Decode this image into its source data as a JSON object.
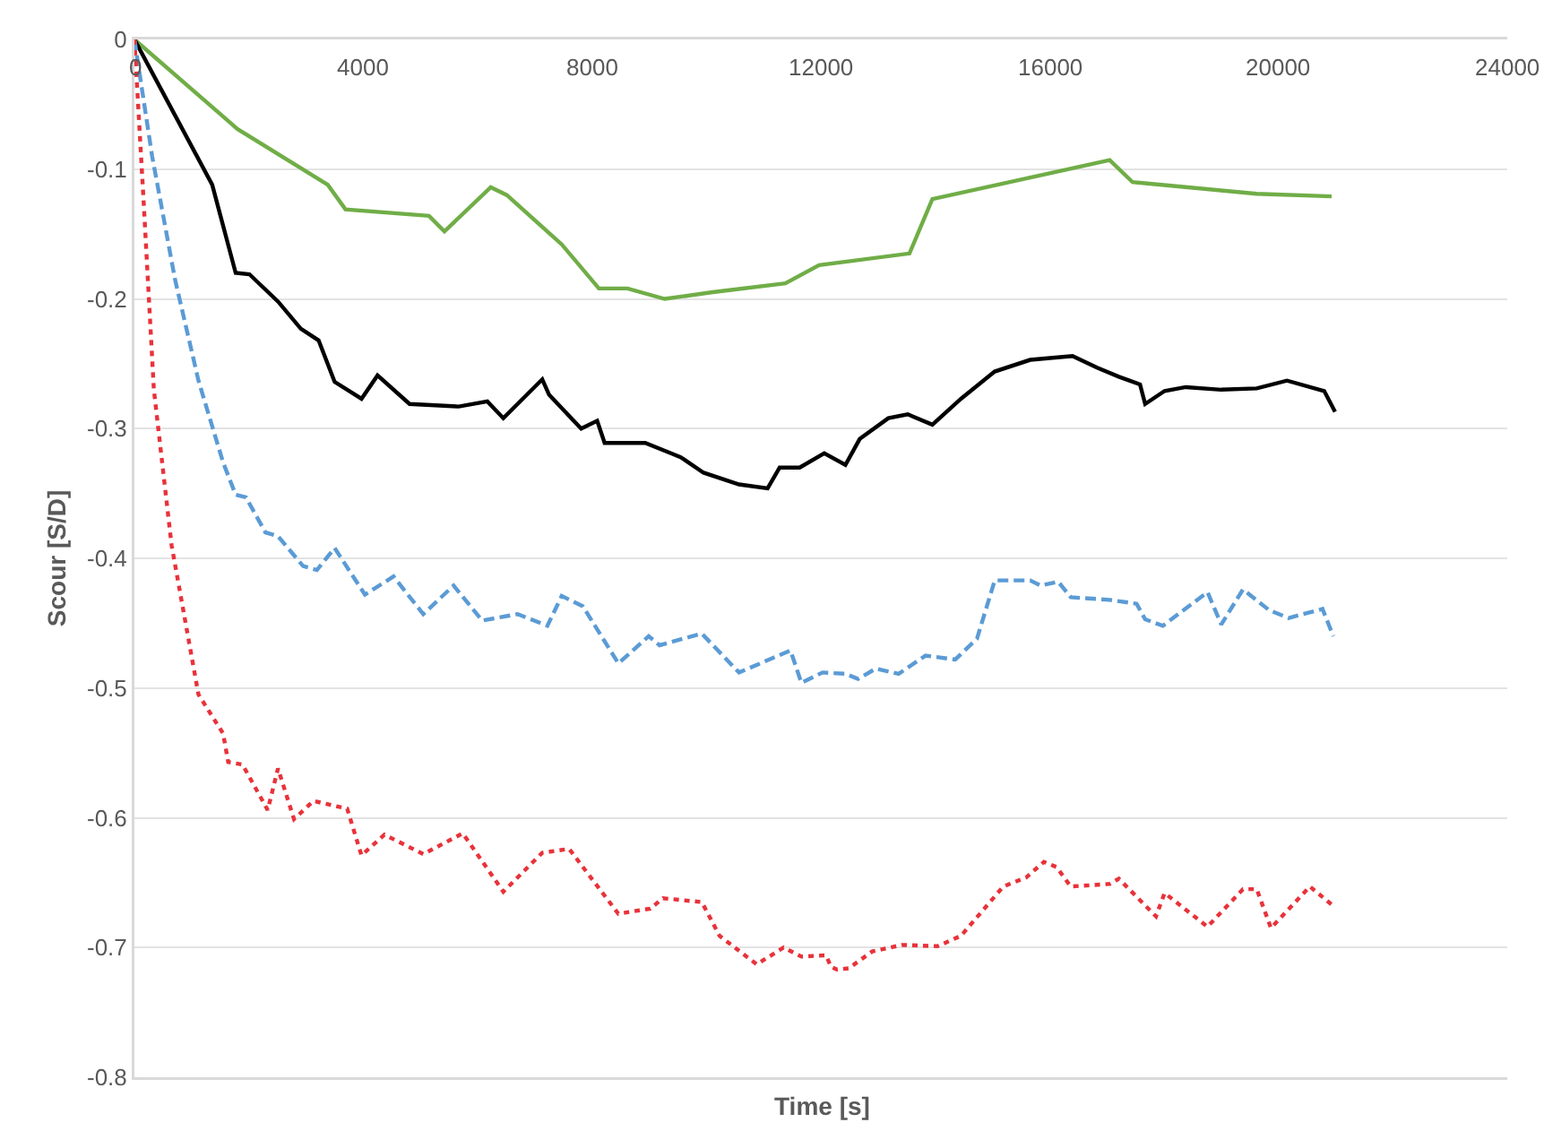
{
  "chart_data": {
    "type": "line",
    "xlabel": "Time [s]",
    "ylabel": "Scour [S/D]",
    "xlim": [
      0,
      24000
    ],
    "xticks": [
      0,
      4000,
      8000,
      12000,
      16000,
      20000,
      24000
    ],
    "ylim": [
      -0.8,
      0
    ],
    "yticks": [
      0,
      -0.1,
      -0.2,
      -0.3,
      -0.4,
      -0.5,
      -0.6,
      -0.7,
      -0.8
    ],
    "grid": "y",
    "marker": "none",
    "series": [
      {
        "color": "#70ad47",
        "line_style": "solid",
        "x": [
          0,
          1800,
          3380,
          3690,
          5150,
          5420,
          6230,
          6510,
          7470,
          8120,
          8620,
          9270,
          10080,
          11380,
          11970,
          13550,
          13950,
          17050,
          17450,
          19620,
          20930
        ],
        "values": [
          0,
          -0.069,
          -0.112,
          -0.131,
          -0.136,
          -0.148,
          -0.114,
          -0.12,
          -0.158,
          -0.192,
          -0.192,
          -0.2,
          -0.195,
          -0.188,
          -0.174,
          -0.165,
          -0.123,
          -0.093,
          -0.11,
          -0.119,
          -0.121
        ]
      },
      {
        "color": "#000000",
        "line_style": "solid",
        "x": [
          0,
          1360,
          1770,
          2010,
          2510,
          2910,
          3220,
          3500,
          3970,
          4250,
          4810,
          5670,
          6170,
          6450,
          7130,
          7250,
          7810,
          8090,
          8220,
          8930,
          9550,
          9950,
          10570,
          11070,
          11280,
          11630,
          12060,
          12430,
          12680,
          13180,
          13520,
          13950,
          14450,
          15040,
          15660,
          16400,
          16830,
          17210,
          17580,
          17670,
          18010,
          18380,
          19000,
          19620,
          20150,
          20800,
          20990
        ],
        "values": [
          0,
          -0.112,
          -0.18,
          -0.181,
          -0.202,
          -0.223,
          -0.232,
          -0.264,
          -0.277,
          -0.259,
          -0.281,
          -0.283,
          -0.279,
          -0.292,
          -0.262,
          -0.274,
          -0.3,
          -0.294,
          -0.311,
          -0.311,
          -0.322,
          -0.334,
          -0.343,
          -0.346,
          -0.33,
          -0.33,
          -0.319,
          -0.328,
          -0.308,
          -0.292,
          -0.289,
          -0.297,
          -0.277,
          -0.256,
          -0.247,
          -0.244,
          -0.253,
          -0.26,
          -0.266,
          -0.281,
          -0.271,
          -0.268,
          -0.27,
          -0.269,
          -0.263,
          -0.271,
          -0.287
        ]
      },
      {
        "color": "#5b9bd5",
        "line_style": "dashed",
        "x": [
          0,
          310,
          710,
          1120,
          1550,
          1770,
          1950,
          2290,
          2510,
          2950,
          3190,
          3500,
          4030,
          4530,
          5050,
          5580,
          6080,
          6700,
          7220,
          7470,
          7840,
          8460,
          8990,
          9180,
          9920,
          10570,
          11470,
          11660,
          12030,
          12430,
          12650,
          12960,
          13360,
          13830,
          14350,
          14730,
          15040,
          15660,
          15840,
          16150,
          16370,
          17050,
          17520,
          17670,
          17980,
          18760,
          19000,
          19380,
          19840,
          20180,
          20770,
          20960
        ],
        "values": [
          0,
          -0.09,
          -0.185,
          -0.263,
          -0.326,
          -0.351,
          -0.353,
          -0.38,
          -0.383,
          -0.406,
          -0.409,
          -0.392,
          -0.428,
          -0.414,
          -0.443,
          -0.421,
          -0.448,
          -0.443,
          -0.452,
          -0.429,
          -0.437,
          -0.481,
          -0.46,
          -0.467,
          -0.458,
          -0.488,
          -0.471,
          -0.496,
          -0.488,
          -0.489,
          -0.493,
          -0.485,
          -0.489,
          -0.475,
          -0.478,
          -0.462,
          -0.417,
          -0.417,
          -0.421,
          -0.418,
          -0.43,
          -0.432,
          -0.435,
          -0.447,
          -0.452,
          -0.426,
          -0.451,
          -0.424,
          -0.44,
          -0.446,
          -0.439,
          -0.46
        ]
      },
      {
        "color": "#e8323a",
        "line_style": "dotted",
        "x": [
          0,
          155,
          340,
          650,
          1120,
          1550,
          1640,
          1890,
          2330,
          2510,
          2790,
          3130,
          3720,
          3970,
          4370,
          5050,
          5740,
          6450,
          7130,
          7600,
          8460,
          9020,
          9240,
          9920,
          10230,
          10880,
          11350,
          11660,
          12090,
          12180,
          12280,
          12490,
          12900,
          13420,
          14040,
          14450,
          15190,
          15590,
          15900,
          16120,
          16370,
          17050,
          17210,
          17860,
          18010,
          18760,
          19380,
          19620,
          19870,
          20550,
          20960
        ],
        "values": [
          0,
          -0.12,
          -0.27,
          -0.39,
          -0.505,
          -0.535,
          -0.557,
          -0.559,
          -0.594,
          -0.562,
          -0.601,
          -0.587,
          -0.593,
          -0.629,
          -0.613,
          -0.628,
          -0.612,
          -0.657,
          -0.627,
          -0.624,
          -0.674,
          -0.67,
          -0.662,
          -0.665,
          -0.691,
          -0.713,
          -0.7,
          -0.707,
          -0.706,
          -0.715,
          -0.717,
          -0.716,
          -0.703,
          -0.698,
          -0.699,
          -0.691,
          -0.653,
          -0.646,
          -0.634,
          -0.638,
          -0.653,
          -0.651,
          -0.647,
          -0.676,
          -0.658,
          -0.684,
          -0.655,
          -0.655,
          -0.685,
          -0.653,
          -0.668
        ]
      }
    ]
  }
}
